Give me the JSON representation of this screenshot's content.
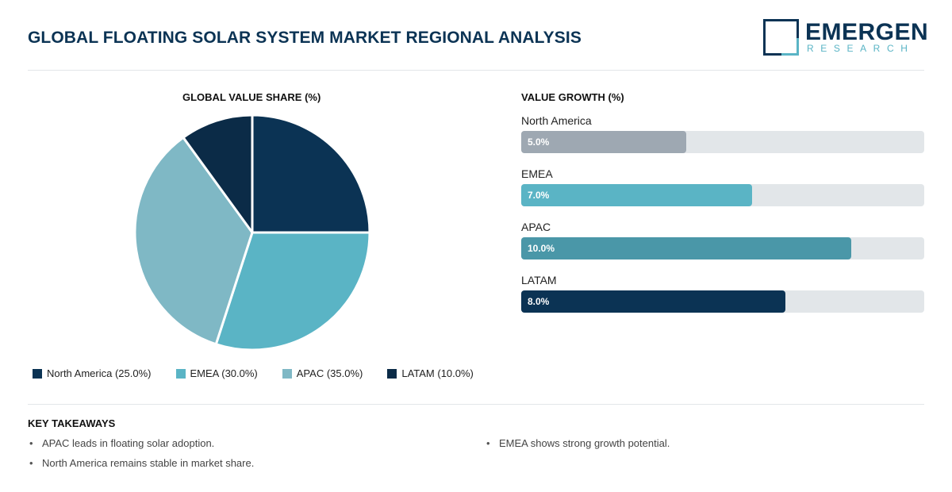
{
  "header": {
    "title": "GLOBAL FLOATING SOLAR SYSTEM MARKET REGIONAL ANALYSIS",
    "logo_name": "EMERGEN",
    "logo_sub": "RESEARCH"
  },
  "colors": {
    "north_america": "#0b3354",
    "emea": "#5ab4c5",
    "apac": "#7fb8c5",
    "latam": "#0b2b47",
    "bar_north_america": "#9ea8b2",
    "bar_emea": "#5ab4c5",
    "bar_apac": "#4a97a8",
    "bar_latam": "#0b3354"
  },
  "chart_data": [
    {
      "type": "pie",
      "title": "GLOBAL VALUE SHARE (%)",
      "categories": [
        "North America",
        "EMEA",
        "APAC",
        "LATAM"
      ],
      "values": [
        25.0,
        30.0,
        35.0,
        10.0
      ],
      "legend": [
        {
          "label": "North America (25.0%)"
        },
        {
          "label": "EMEA (30.0%)"
        },
        {
          "label": "APAC (35.0%)"
        },
        {
          "label": "LATAM (10.0%)"
        }
      ],
      "legend_position": "bottom"
    },
    {
      "type": "bar",
      "orientation": "horizontal",
      "title": "VALUE GROWTH (%)",
      "categories": [
        "North America",
        "EMEA",
        "APAC",
        "LATAM"
      ],
      "values": [
        5.0,
        7.0,
        10.0,
        8.0
      ],
      "value_labels": [
        "5.0%",
        "7.0%",
        "10.0%",
        "8.0%"
      ],
      "xlim": [
        0,
        12.2
      ]
    }
  ],
  "takeaways": {
    "title": "KEY TAKEAWAYS",
    "col1": [
      "APAC leads in floating solar adoption.",
      "North America remains stable in market share."
    ],
    "col2": [
      "EMEA shows strong growth potential."
    ]
  }
}
